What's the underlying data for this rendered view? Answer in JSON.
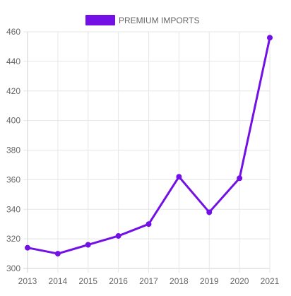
{
  "chart_data": {
    "type": "line",
    "title": "",
    "xlabel": "",
    "ylabel": "",
    "x": [
      "2013",
      "2014",
      "2015",
      "2016",
      "2017",
      "2018",
      "2019",
      "2020",
      "2021"
    ],
    "series": [
      {
        "name": "PREMIUM IMPORTS",
        "values": [
          314,
          310,
          316,
          322,
          330,
          362,
          338,
          361,
          456
        ],
        "color": "#7210e6"
      }
    ],
    "ylim": [
      300,
      460
    ],
    "y_ticks": [
      300,
      320,
      340,
      360,
      380,
      400,
      420,
      440,
      460
    ],
    "grid": true,
    "legend_position": "top-center"
  }
}
